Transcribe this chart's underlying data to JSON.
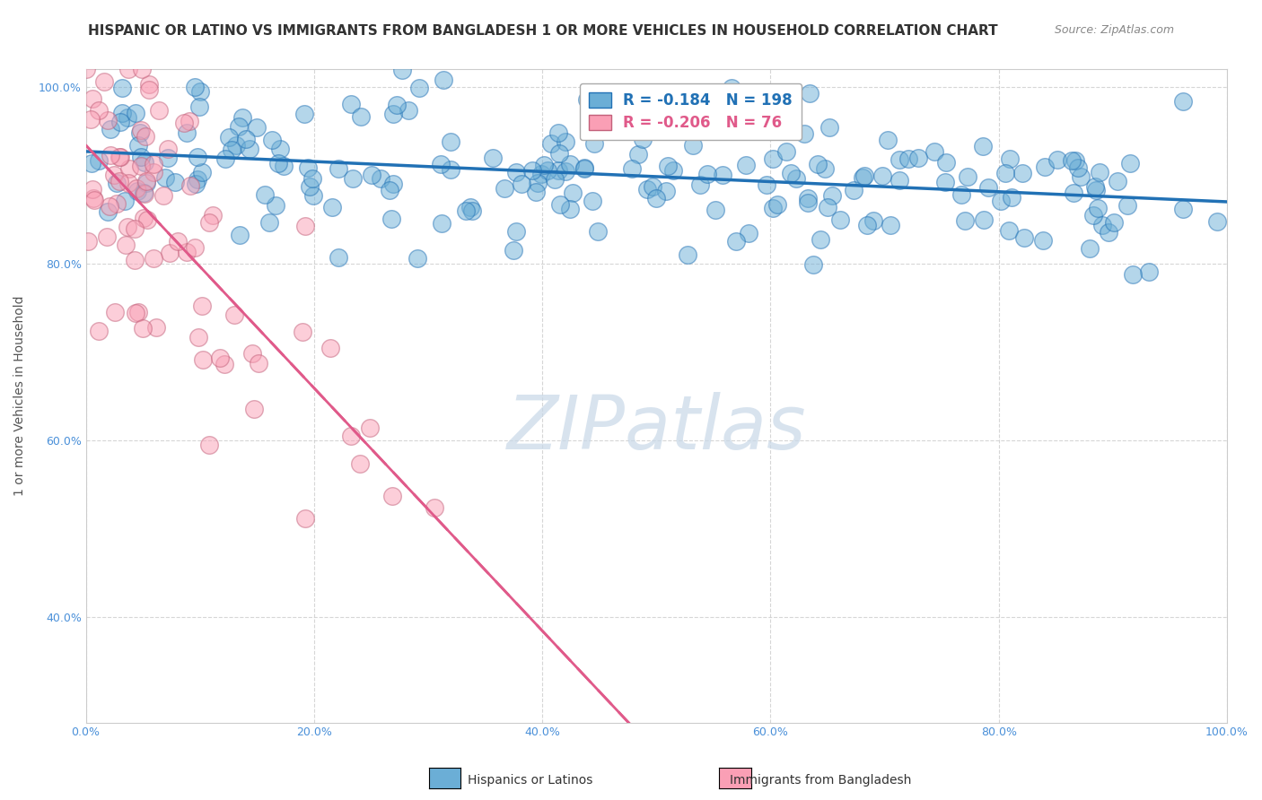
{
  "title": "HISPANIC OR LATINO VS IMMIGRANTS FROM BANGLADESH 1 OR MORE VEHICLES IN HOUSEHOLD CORRELATION CHART",
  "source": "Source: ZipAtlas.com",
  "ylabel": "1 or more Vehicles in Household",
  "xlabel": "",
  "xlim": [
    0.0,
    1.0
  ],
  "ylim": [
    0.28,
    1.02
  ],
  "blue_R": -0.184,
  "blue_N": 198,
  "pink_R": -0.206,
  "pink_N": 76,
  "blue_color": "#6baed6",
  "pink_color": "#fa9fb5",
  "blue_line_color": "#2171b5",
  "pink_line_color": "#e05a8a",
  "watermark": "ZIPatlas",
  "watermark_color": "#c8d8e8",
  "legend_blue": "Hispanics or Latinos",
  "legend_pink": "Immigrants from Bangladesh",
  "title_fontsize": 11,
  "axis_label_fontsize": 10,
  "tick_fontsize": 9,
  "blue_seed": 42,
  "pink_seed": 7,
  "grid_color": "#cccccc",
  "ytick_labels": [
    "100.0%",
    "80.0%",
    "60.0%",
    "40.0%"
  ],
  "ytick_values": [
    1.0,
    0.8,
    0.6,
    0.4
  ],
  "xtick_labels": [
    "0.0%",
    "20.0%",
    "40.0%",
    "60.0%",
    "80.0%",
    "100.0%"
  ],
  "xtick_values": [
    0.0,
    0.2,
    0.4,
    0.6,
    0.8,
    1.0
  ]
}
